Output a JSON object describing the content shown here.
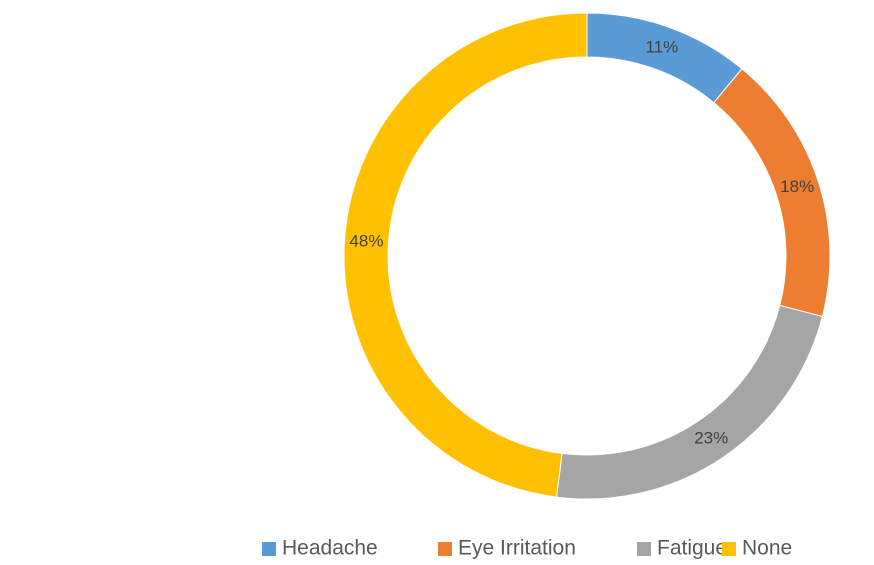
{
  "chart_data": {
    "type": "donut",
    "categories": [
      "Headache",
      "Eye Irritation",
      "Fatigue",
      "None"
    ],
    "values": [
      11,
      18,
      23,
      48
    ],
    "value_labels": [
      "11%",
      "18%",
      "23%",
      "48%"
    ],
    "colors": [
      "#5b9bd5",
      "#ed7d31",
      "#a5a5a5",
      "#ffc000"
    ],
    "legend": "bottom"
  }
}
